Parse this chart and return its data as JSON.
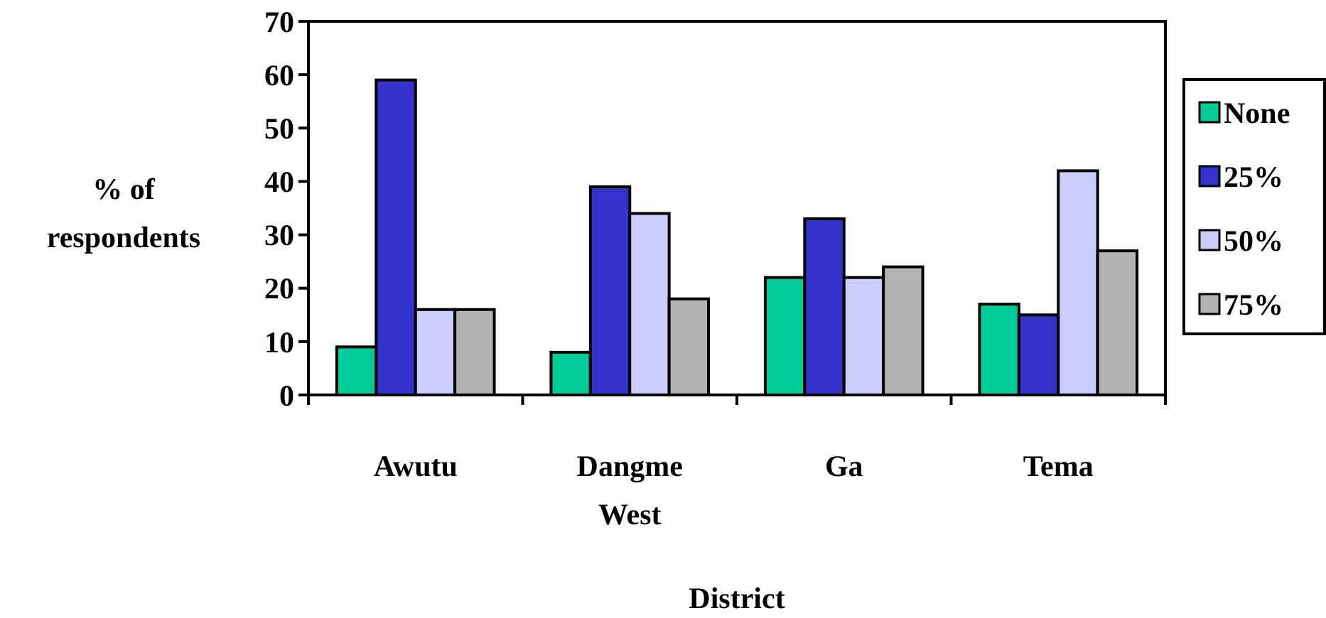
{
  "chart_data": {
    "type": "bar",
    "xlabel": "District",
    "ylabel": "% of respondents",
    "categories": [
      "Awutu",
      "Dangme West",
      "Ga",
      "Tema"
    ],
    "series": [
      {
        "name": "None",
        "color": "#00cc99",
        "values": [
          9,
          8,
          22,
          17
        ]
      },
      {
        "name": "25%",
        "color": "#3333cc",
        "values": [
          59,
          39,
          33,
          15
        ]
      },
      {
        "name": "50%",
        "color": "#ccccff",
        "values": [
          16,
          34,
          22,
          42
        ]
      },
      {
        "name": "75%",
        "color": "#b2b2b2",
        "values": [
          16,
          18,
          24,
          27
        ]
      }
    ],
    "ylim": [
      0,
      70
    ],
    "yticks": [
      0,
      10,
      20,
      30,
      40,
      50,
      60,
      70
    ],
    "legend": "right"
  }
}
